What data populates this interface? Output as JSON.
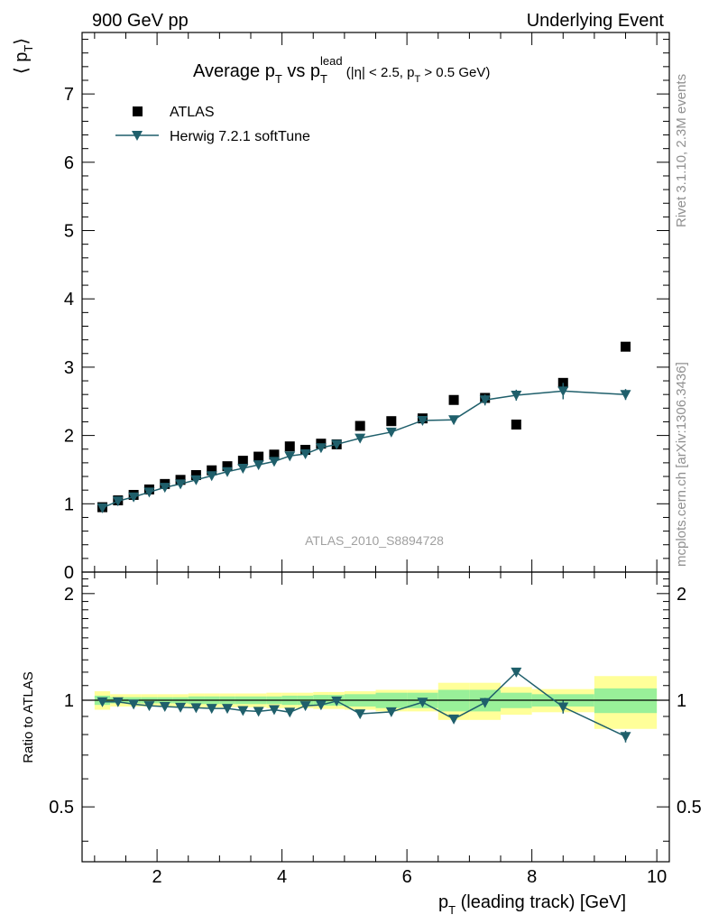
{
  "header": {
    "left": "900 GeV pp",
    "right": "Underlying Event"
  },
  "side_labels": {
    "rivet": "Rivet 3.1.10,  2.3M events",
    "mcplots": "mcplots.cern.ch [arXiv:1306.3436]"
  },
  "watermark": "ATLAS_2010_S8894728",
  "chart_data": {
    "type": "scatter",
    "title": {
      "main": "Average p",
      "sub_T1": "T",
      "vs": " vs p",
      "sup_lead": "lead",
      "sub_T2": "T",
      "cuts_a": " (|η| < 2.5, p",
      "cuts_sub": "T",
      "cuts_b": " > 0.5 GeV)"
    },
    "xlabel": {
      "main": "p",
      "sub": "T",
      "rest": " (leading track) [GeV]"
    },
    "ylabel_top": {
      "open": "⟨ p",
      "sub": "T",
      "close": "⟩"
    },
    "ylabel_ratio": "Ratio to ATLAS",
    "xlim": [
      0.8,
      10.2
    ],
    "ylim_top": [
      0,
      7.9
    ],
    "ylim_ratio": [
      0.35,
      2.3
    ],
    "xticks": [
      {
        "v": 2,
        "label": "2"
      },
      {
        "v": 4,
        "label": "4"
      },
      {
        "v": 6,
        "label": "6"
      },
      {
        "v": 8,
        "label": "8"
      },
      {
        "v": 10,
        "label": "10"
      }
    ],
    "yticks_top": [
      {
        "v": 0,
        "label": "0"
      },
      {
        "v": 1,
        "label": "1"
      },
      {
        "v": 2,
        "label": "2"
      },
      {
        "v": 3,
        "label": "3"
      },
      {
        "v": 4,
        "label": "4"
      },
      {
        "v": 5,
        "label": "5"
      },
      {
        "v": 6,
        "label": "6"
      },
      {
        "v": 7,
        "label": "7"
      }
    ],
    "yticks_ratio": [
      {
        "v": 0.5,
        "label": "0.5"
      },
      {
        "v": 1,
        "label": "1"
      },
      {
        "v": 2,
        "label": "2"
      }
    ],
    "legend_position": "top-left",
    "colors": {
      "data": "#000000",
      "mc": "#1f5f6b",
      "band_inner": "#99f099",
      "band_outer": "#ffff99"
    },
    "series": [
      {
        "name": "ATLAS",
        "style": "square-markers",
        "x": [
          1.125,
          1.375,
          1.625,
          1.875,
          2.125,
          2.375,
          2.625,
          2.875,
          3.125,
          3.375,
          3.625,
          3.875,
          4.125,
          4.375,
          4.625,
          4.875,
          5.25,
          5.75,
          6.25,
          6.75,
          7.25,
          7.75,
          8.5,
          9.5
        ],
        "y": [
          0.95,
          1.05,
          1.13,
          1.21,
          1.29,
          1.35,
          1.42,
          1.49,
          1.55,
          1.63,
          1.69,
          1.72,
          1.84,
          1.79,
          1.88,
          1.87,
          2.14,
          2.21,
          2.25,
          2.52,
          2.55,
          2.16,
          2.77,
          3.3
        ],
        "x_err": [
          0.125,
          0.125,
          0.125,
          0.125,
          0.125,
          0.125,
          0.125,
          0.125,
          0.125,
          0.125,
          0.125,
          0.125,
          0.125,
          0.125,
          0.125,
          0.125,
          0.25,
          0.25,
          0.25,
          0.25,
          0.25,
          0.25,
          0.5,
          0.5
        ],
        "band_inner": [
          0.03,
          0.02,
          0.02,
          0.02,
          0.02,
          0.02,
          0.025,
          0.025,
          0.025,
          0.025,
          0.025,
          0.025,
          0.03,
          0.03,
          0.035,
          0.035,
          0.04,
          0.05,
          0.05,
          0.07,
          0.07,
          0.05,
          0.04,
          0.08
        ],
        "band_outer": [
          0.06,
          0.04,
          0.04,
          0.04,
          0.04,
          0.04,
          0.045,
          0.045,
          0.045,
          0.045,
          0.045,
          0.05,
          0.05,
          0.05,
          0.055,
          0.055,
          0.06,
          0.07,
          0.07,
          0.12,
          0.12,
          0.09,
          0.075,
          0.17
        ]
      },
      {
        "name": "Herwig 7.2.1 softTune",
        "style": "line-triangle-down",
        "x": [
          1.125,
          1.375,
          1.625,
          1.875,
          2.125,
          2.375,
          2.625,
          2.875,
          3.125,
          3.375,
          3.625,
          3.875,
          4.125,
          4.375,
          4.625,
          4.875,
          5.25,
          5.75,
          6.25,
          6.75,
          7.25,
          7.75,
          8.5,
          9.5
        ],
        "y": [
          0.94,
          1.04,
          1.1,
          1.17,
          1.24,
          1.29,
          1.35,
          1.41,
          1.47,
          1.52,
          1.57,
          1.62,
          1.7,
          1.73,
          1.82,
          1.87,
          1.96,
          2.05,
          2.22,
          2.23,
          2.52,
          2.59,
          2.65,
          2.6
        ],
        "y_err": [
          0.01,
          0.01,
          0.01,
          0.01,
          0.01,
          0.01,
          0.01,
          0.01,
          0.01,
          0.01,
          0.01,
          0.01,
          0.01,
          0.01,
          0.02,
          0.02,
          0.02,
          0.03,
          0.04,
          0.05,
          0.08,
          0.08,
          0.12,
          0.08
        ],
        "ratio": [
          0.99,
          0.99,
          0.975,
          0.965,
          0.96,
          0.955,
          0.952,
          0.948,
          0.948,
          0.935,
          0.93,
          0.94,
          0.925,
          0.965,
          0.97,
          0.995,
          0.915,
          0.927,
          0.987,
          0.885,
          0.985,
          1.2,
          0.957,
          0.79
        ],
        "ratio_err": [
          0.005,
          0.005,
          0.005,
          0.005,
          0.005,
          0.005,
          0.005,
          0.006,
          0.006,
          0.006,
          0.006,
          0.007,
          0.007,
          0.008,
          0.01,
          0.01,
          0.01,
          0.012,
          0.015,
          0.02,
          0.03,
          0.035,
          0.04,
          0.03
        ]
      }
    ]
  }
}
